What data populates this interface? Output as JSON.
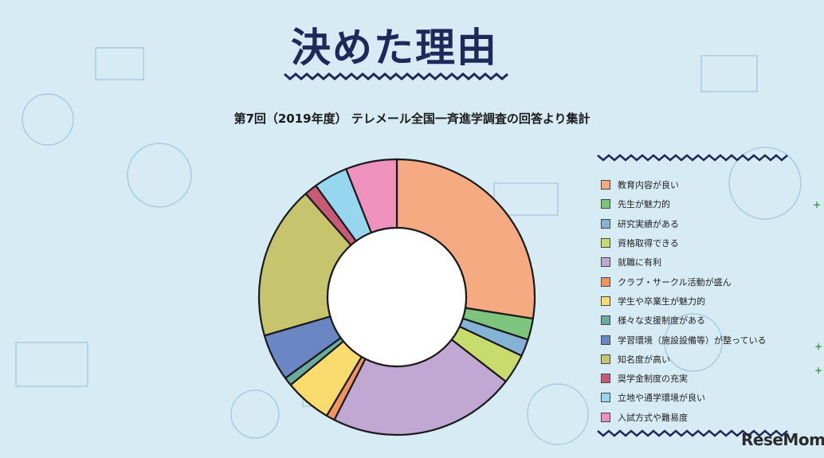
{
  "header": {
    "logo_text": "決めた理由",
    "subtitle": "第7回（2019年度） テレメール全国一斉進学調査の回答より集計"
  },
  "brand": {
    "name": "ReseMom"
  },
  "colors": {
    "background": "#d7ebf5",
    "navy": "#1c2a5a",
    "ring_outline": "#1a1a1a"
  },
  "chart_data": {
    "type": "pie",
    "donut": true,
    "title": "",
    "legend_position": "right",
    "categories": [
      "教育内容が良い",
      "先生が魅力的",
      "研究実績がある",
      "資格取得できる",
      "就職に有利",
      "クラブ・サークル活動が盛ん",
      "学生や卒業生が魅力的",
      "様々な支援制度がある",
      "学習環境（施設設備等）が整っている",
      "知名度が高い",
      "奨学金制度の充実",
      "立地や通学環境が良い",
      "入試方式や難易度"
    ],
    "values": [
      27.5,
      2.5,
      2.0,
      3.5,
      22.0,
      1.0,
      5.5,
      1.0,
      5.5,
      18.0,
      1.5,
      4.0,
      6.0
    ],
    "colors": [
      "#f5aa82",
      "#7dc57d",
      "#84b3d6",
      "#c8dc6e",
      "#c0a8d2",
      "#f0955f",
      "#fadc6e",
      "#6aaba0",
      "#6b87c3",
      "#c6c46c",
      "#c85a78",
      "#96d6ee",
      "#ee91bd"
    ]
  }
}
